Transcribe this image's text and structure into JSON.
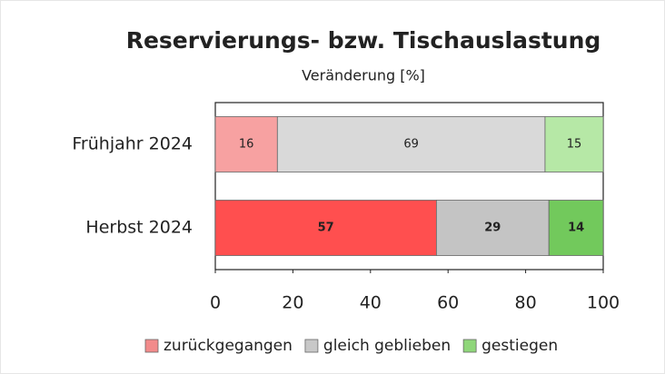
{
  "chart_data": {
    "type": "stacked_barh",
    "title": "Reservierungs- bzw. Tischauslastung",
    "subtitle": "Veränderung [%]",
    "categories": [
      "Frühjahr 2024",
      "Herbst 2024"
    ],
    "series": [
      {
        "name": "zurückgegangen",
        "color": "#f28b8b",
        "colors": [
          "#f7a1a1",
          "#ff4f4f"
        ],
        "values": [
          16,
          57
        ]
      },
      {
        "name": "gleich geblieben",
        "color": "#c8c8c8",
        "colors": [
          "#d9d9d9",
          "#c4c4c4"
        ],
        "values": [
          69,
          29
        ]
      },
      {
        "name": "gestiegen",
        "color": "#8fd67a",
        "colors": [
          "#b6e8a6",
          "#72c95c"
        ],
        "values": [
          15,
          14
        ]
      }
    ],
    "xlim": [
      0,
      100
    ],
    "xticks": [
      0,
      20,
      40,
      60,
      80,
      100
    ],
    "legend": "bottom"
  }
}
